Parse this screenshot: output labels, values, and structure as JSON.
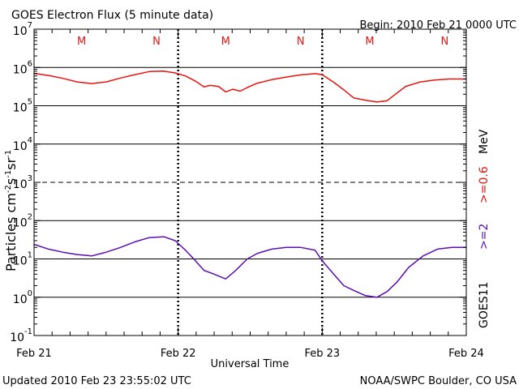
{
  "chart_data": {
    "type": "line",
    "title": "GOES Electron Flux (5 minute data)",
    "begin_label": "Begin: 2010 Feb 21 0000 UTC",
    "xlabel": "Universal Time",
    "ylabel_parts": {
      "text": "Particles cm",
      "exp1": "-2",
      "s": "s",
      "exp2": "-1",
      "sr": "sr",
      "exp3": "-1"
    },
    "y_scale": "log",
    "ylim_exp": [
      -1,
      7
    ],
    "y_ticks": [
      {
        "base": "10",
        "exp": "7"
      },
      {
        "base": "10",
        "exp": "6"
      },
      {
        "base": "10",
        "exp": "5"
      },
      {
        "base": "10",
        "exp": "4"
      },
      {
        "base": "10",
        "exp": "3"
      },
      {
        "base": "10",
        "exp": "2"
      },
      {
        "base": "10",
        "exp": "1"
      },
      {
        "base": "10",
        "exp": "0"
      },
      {
        "base": "10",
        "exp": "-1"
      }
    ],
    "x_unit": "days since 2010 Feb 21 0000 UTC",
    "xlim": [
      0,
      3
    ],
    "x_ticks": [
      "Feb 21",
      "Feb 22",
      "Feb 23",
      "Feb 24"
    ],
    "mn_markers": [
      {
        "label": "M",
        "day": 0.33
      },
      {
        "label": "N",
        "day": 0.85
      },
      {
        "label": "M",
        "day": 1.33
      },
      {
        "label": "N",
        "day": 1.85
      },
      {
        "label": "M",
        "day": 2.33
      },
      {
        "label": "N",
        "day": 2.85
      }
    ],
    "series_colors": {
      "mev06": "#e8130e",
      "mev2": "#5a0fb4"
    },
    "right_labels": {
      "mev06_part": "MeV",
      "mev06_threshold": ">=0.6",
      "mev2_threshold": ">=2",
      "satellite": "GOES11"
    },
    "series": [
      {
        "name": ">=0.6 MeV",
        "x": [
          0.0,
          0.1,
          0.2,
          0.3,
          0.4,
          0.5,
          0.6,
          0.7,
          0.8,
          0.9,
          0.98,
          1.05,
          1.12,
          1.18,
          1.22,
          1.28,
          1.33,
          1.38,
          1.43,
          1.48,
          1.55,
          1.65,
          1.75,
          1.85,
          1.95,
          2.0,
          2.08,
          2.15,
          2.22,
          2.3,
          2.38,
          2.45,
          2.5,
          2.58,
          2.68,
          2.78,
          2.88,
          3.0
        ],
        "y": [
          700000,
          620000,
          520000,
          420000,
          380000,
          420000,
          530000,
          650000,
          780000,
          800000,
          720000,
          600000,
          440000,
          310000,
          340000,
          320000,
          230000,
          270000,
          240000,
          300000,
          390000,
          480000,
          560000,
          640000,
          690000,
          650000,
          410000,
          260000,
          160000,
          140000,
          125000,
          135000,
          190000,
          320000,
          420000,
          470000,
          500000,
          500000
        ]
      },
      {
        "name": ">=2 MeV",
        "x": [
          0.0,
          0.1,
          0.2,
          0.3,
          0.4,
          0.5,
          0.6,
          0.7,
          0.8,
          0.9,
          0.98,
          1.05,
          1.12,
          1.18,
          1.25,
          1.33,
          1.4,
          1.48,
          1.55,
          1.65,
          1.75,
          1.85,
          1.95,
          2.0,
          2.08,
          2.15,
          2.22,
          2.3,
          2.38,
          2.45,
          2.52,
          2.6,
          2.7,
          2.8,
          2.9,
          3.0
        ],
        "y": [
          24,
          18,
          15,
          13,
          12,
          15,
          20,
          28,
          36,
          38,
          30,
          17,
          9,
          5,
          4,
          3,
          5,
          10,
          14,
          18,
          20,
          20,
          17,
          9,
          4,
          2,
          1.5,
          1.1,
          1.0,
          1.4,
          2.5,
          6,
          12,
          18,
          20,
          20
        ]
      }
    ],
    "footer_left": "Updated 2010 Feb 23 23:55:02 UTC",
    "footer_right": "NOAA/SWPC Boulder, CO USA"
  }
}
